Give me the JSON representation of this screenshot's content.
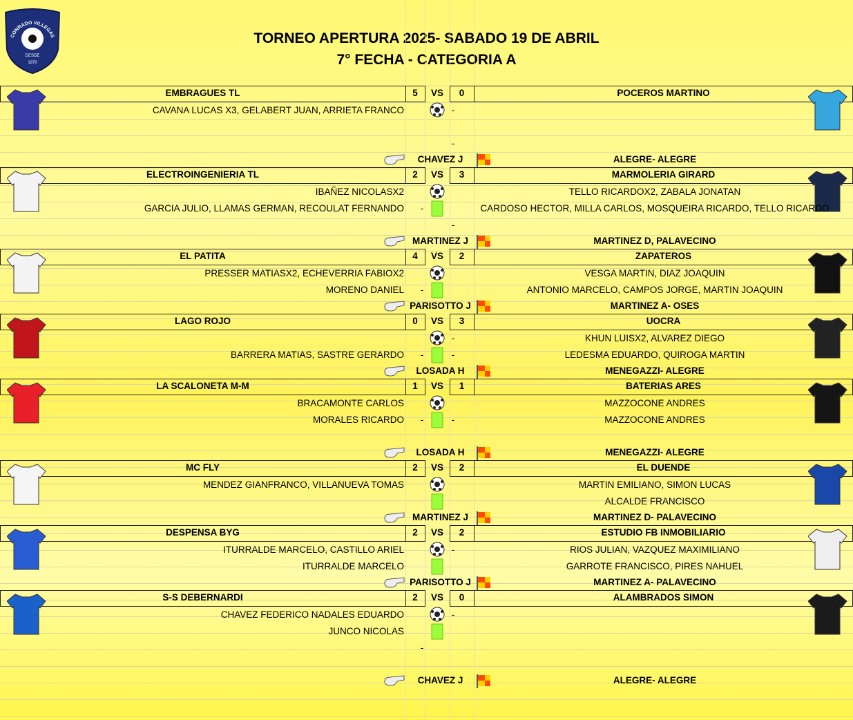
{
  "header": {
    "title": "TORNEO APERTURA 2025- SABADO 19 DE ABRIL",
    "subtitle": "7° FECHA - CATEGORIA A",
    "logo": {
      "name": "CONRADO VILLEGAS",
      "since": "DESDE",
      "year": "1970"
    }
  },
  "vs": "VS",
  "matches": [
    {
      "home": "EMBRAGUES TL",
      "home_score": "5",
      "away_score": "0",
      "away": "POCEROS MARTINO",
      "referee": "CHAVEZ J",
      "assistants": "ALEGRE- ALEGRE",
      "lines": [
        {
          "left": "CAVANA LUCAS X3, GELABERT JUAN, ARRIETA FRANCO",
          "right_dash": "-"
        },
        {},
        {
          "right_dash": "-"
        }
      ]
    },
    {
      "home": "ELECTROINGENIERIA TL",
      "home_score": "2",
      "away_score": "3",
      "away": "MARMOLERIA GIRARD",
      "referee": "MARTINEZ J",
      "assistants": "MARTINEZ D, PALAVECINO",
      "lines": [
        {
          "left": "IBAÑEZ NICOLASX2",
          "right": "TELLO RICARDOX2, ZABALA JONATAN"
        },
        {
          "left": "GARCIA JULIO, LLAMAS GERMAN, RECOULAT FERNANDO",
          "left_dash": "-",
          "right": "CARDOSO HECTOR, MILLA CARLOS, MOSQUEIRA RICARDO, TELLO RICARDO"
        },
        {
          "right_dash": "-"
        }
      ]
    },
    {
      "home": "EL PATITA",
      "home_score": "4",
      "away_score": "2",
      "away": "ZAPATEROS",
      "referee": "PARISOTTO J",
      "assistants": "MARTINEZ A- OSES",
      "lines": [
        {
          "left": "PRESSER MATIASX2, ECHEVERRIA FABIOX2",
          "right": "VESGA MARTIN, DIAZ JOAQUIN"
        },
        {
          "left": "MORENO DANIEL",
          "left_dash": "-",
          "right": "ANTONIO MARCELO, CAMPOS JORGE, MARTIN JOAQUIN"
        }
      ]
    },
    {
      "home": "LAGO ROJO",
      "home_score": "0",
      "away_score": "3",
      "away": "UOCRA",
      "referee": "LOSADA H",
      "assistants": "MENEGAZZI- ALEGRE",
      "lines": [
        {
          "right_dash": "-",
          "right": "KHUN LUISX2, ALVAREZ DIEGO"
        },
        {
          "left": "BARRERA MATIAS, SASTRE GERARDO",
          "left_dash": "-",
          "right_dash": "-",
          "right": "LEDESMA EDUARDO, QUIROGA MARTIN"
        }
      ]
    },
    {
      "home": "LA SCALONETA M-M",
      "home_score": "1",
      "away_score": "1",
      "away": "BATERIAS ARES",
      "referee": "LOSADA H",
      "assistants": "MENEGAZZI- ALEGRE",
      "lines": [
        {
          "left": "BRACAMONTE CARLOS",
          "right": "MAZZOCONE ANDRES"
        },
        {
          "left": "MORALES RICARDO",
          "left_dash": "-",
          "right_dash": "-",
          "right": "MAZZOCONE ANDRES"
        },
        {}
      ]
    },
    {
      "home": "MC FLY",
      "home_score": "2",
      "away_score": "2",
      "away": "EL DUENDE",
      "referee": "MARTINEZ J",
      "assistants": "MARTINEZ D- PALAVECINO",
      "lines": [
        {
          "left": "MENDEZ GIANFRANCO, VILLANUEVA TOMAS",
          "right": "MARTIN EMILIANO, SIMON LUCAS"
        },
        {
          "right": "ALCALDE FRANCISCO"
        }
      ]
    },
    {
      "home": "DESPENSA BYG",
      "home_score": "2",
      "away_score": "2",
      "away": "ESTUDIO FB INMOBILIARIO",
      "referee": "PARISOTTO J",
      "assistants": "MARTINEZ A- PALAVECINO",
      "lines": [
        {
          "left": "ITURRALDE MARCELO, CASTILLO ARIEL",
          "right_dash": "-",
          "right": "RIOS JULIAN, VAZQUEZ MAXIMILIANO"
        },
        {
          "left": "ITURRALDE MARCELO",
          "right": "GARROTE FRANCISCO, PIRES NAHUEL"
        }
      ]
    },
    {
      "home": "S-S DEBERNARDI",
      "home_score": "2",
      "away_score": "0",
      "away": "ALAMBRADOS SIMON",
      "referee": "CHAVEZ J",
      "assistants": "ALEGRE- ALEGRE",
      "lines": [
        {
          "left": "CHAVEZ FEDERICO NADALES EDUARDO",
          "right_dash": "-"
        },
        {
          "left": "JUNCO NICOLAS"
        },
        {
          "left_dash": "-"
        },
        {}
      ]
    }
  ]
}
